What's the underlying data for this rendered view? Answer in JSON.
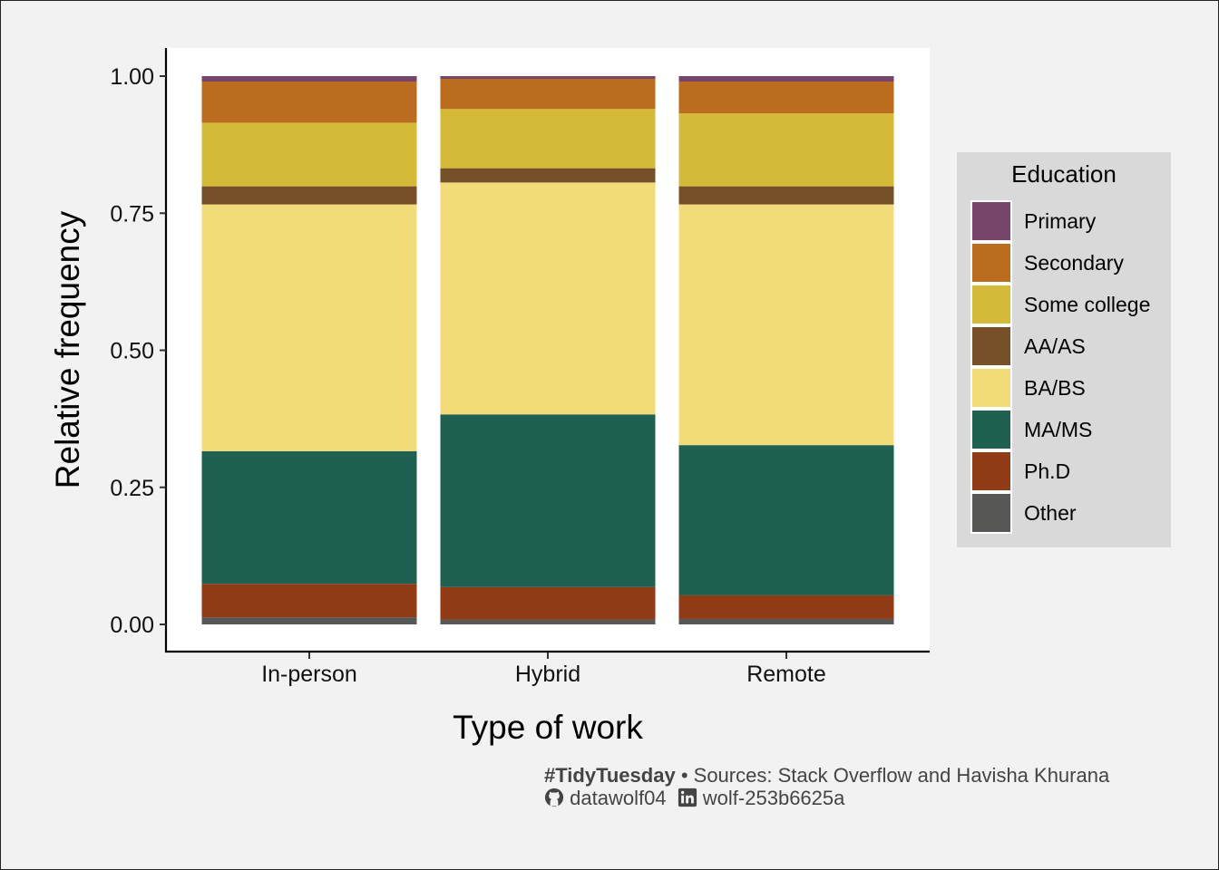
{
  "chart_data": {
    "type": "bar",
    "stacked": true,
    "title": "",
    "xlabel": "Type of work",
    "ylabel": "Relative frequency",
    "categories": [
      "In-person",
      "Hybrid",
      "Remote"
    ],
    "ylim": [
      0,
      1
    ],
    "yticks": [
      "0.00",
      "0.25",
      "0.50",
      "0.75",
      "1.00"
    ],
    "ytick_values": [
      0,
      0.25,
      0.5,
      0.75,
      1.0
    ],
    "grid": false,
    "legend": {
      "title": "Education",
      "position": "right"
    },
    "series": [
      {
        "name": "Primary",
        "color": "#77456a",
        "values": [
          0.01,
          0.005,
          0.01
        ]
      },
      {
        "name": "Secondary",
        "color": "#bb6c1e",
        "values": [
          0.075,
          0.055,
          0.058
        ]
      },
      {
        "name": "Some college",
        "color": "#d5ba39",
        "values": [
          0.116,
          0.108,
          0.133
        ]
      },
      {
        "name": "AA/AS",
        "color": "#774f29",
        "values": [
          0.033,
          0.026,
          0.033
        ]
      },
      {
        "name": "BA/BS",
        "color": "#f2dc7a",
        "values": [
          0.45,
          0.423,
          0.439
        ]
      },
      {
        "name": "MA/MS",
        "color": "#206050",
        "values": [
          0.242,
          0.315,
          0.274
        ]
      },
      {
        "name": "Ph.D",
        "color": "#903a16",
        "values": [
          0.061,
          0.059,
          0.043
        ]
      },
      {
        "name": "Other",
        "color": "#575856",
        "values": [
          0.013,
          0.009,
          0.01
        ]
      }
    ]
  },
  "caption": {
    "hashtag": "#TidyTuesday",
    "separator": "•",
    "sources": "Sources: Stack Overflow and Havisha Khurana",
    "github_icon": "github-icon",
    "github_user": "datawolf04",
    "linkedin_icon": "linkedin-icon",
    "linkedin_user": "wolf-253b6625a"
  }
}
